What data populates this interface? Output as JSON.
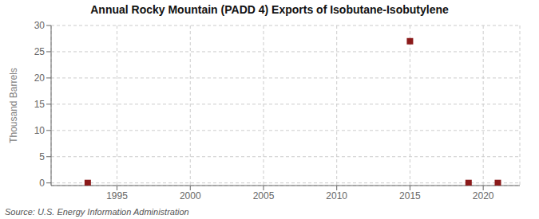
{
  "chart_data": {
    "type": "scatter",
    "title": "Annual Rocky Mountain (PADD 4) Exports of Isobutane-Isobutylene",
    "ylabel": "Thousand Barrels",
    "source": "Source: U.S. Energy Information Administration",
    "x": [
      1993,
      2015,
      2019,
      2021
    ],
    "values": [
      0,
      27,
      0,
      0
    ],
    "color": "#8b1a1a",
    "marker": "square",
    "xlim": [
      1990.5,
      2022.5
    ],
    "ylim": [
      -0.5,
      30
    ],
    "xticks": [
      1995,
      2000,
      2005,
      2010,
      2015,
      2020
    ],
    "yticks": [
      0,
      5,
      10,
      15,
      20,
      25,
      30
    ],
    "grid": true
  }
}
